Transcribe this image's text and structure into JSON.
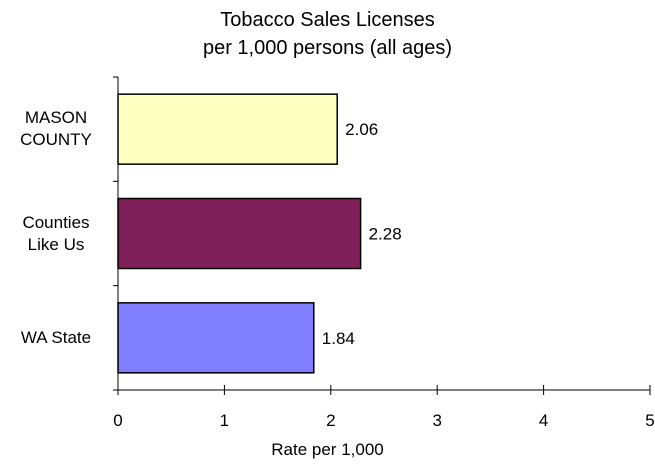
{
  "chart_data": {
    "type": "bar",
    "orientation": "horizontal",
    "title": "Tobacco Sales Licenses",
    "subtitle": "per 1,000 persons (all ages)",
    "xlabel": "Rate per 1,000",
    "ylabel": "",
    "xlim": [
      0,
      5
    ],
    "xticks": [
      "0",
      "1",
      "2",
      "3",
      "4",
      "5"
    ],
    "grid": false,
    "legend": "none",
    "categories": [
      {
        "line1": "MASON",
        "line2": "COUNTY"
      },
      {
        "line1": "Counties",
        "line2": "Like Us"
      },
      {
        "line1": "WA State",
        "line2": ""
      }
    ],
    "values": [
      2.06,
      2.28,
      1.84
    ],
    "value_labels": [
      "2.06",
      "2.28",
      "1.84"
    ],
    "colors": [
      "#ffffc0",
      "#80205a",
      "#8080ff"
    ]
  }
}
